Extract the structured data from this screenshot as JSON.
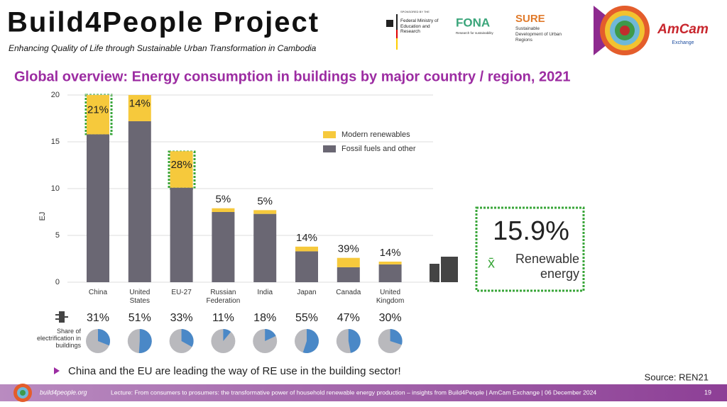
{
  "header": {
    "title": "Build4People Project",
    "subtitle": "Enhancing Quality of Life through Sustainable Urban Transformation in Cambodia"
  },
  "logos": {
    "sponsor_caption": "SPONSORED BY THE",
    "ministry": "Federal Ministry of Education and Research",
    "fona": "FONA",
    "fona_caption": "Research for sustainability",
    "sure": "SURE",
    "sure_caption": "Sustainable Development of Urban Regions",
    "amcam": "AmCam",
    "amcam_caption": "Exchange"
  },
  "slide_title": "Global overview: Energy consumption in buildings by major country / region, 2021",
  "chart_data": {
    "type": "stacked-bar",
    "y_label": "EJ",
    "categories": [
      "China",
      "United States",
      "EU-27",
      "Russian Federation",
      "India",
      "Japan",
      "Canada",
      "United Kingdom"
    ],
    "series": [
      {
        "name": "Modern renewables",
        "color": "#f6c93c",
        "values": [
          4.2,
          2.8,
          3.9,
          0.4,
          0.4,
          0.5,
          1.0,
          0.3
        ]
      },
      {
        "name": "Fossil fuels and other",
        "color": "#6a6773",
        "values": [
          15.8,
          17.2,
          10.1,
          7.5,
          7.3,
          3.3,
          1.6,
          1.9
        ]
      }
    ],
    "renewable_share_labels": [
      "21%",
      "14%",
      "28%",
      "5%",
      "5%",
      "14%",
      "39%",
      "14%"
    ],
    "ylim": [
      0,
      20
    ],
    "yticks": [
      0,
      5,
      10,
      15,
      20
    ],
    "grid": true,
    "electrification": {
      "type": "pie",
      "label": "Share of electrification in buildings",
      "color": "#4a88c7",
      "rest_color": "#b9b9bd",
      "values": [
        31,
        51,
        33,
        11,
        18,
        55,
        47,
        30
      ],
      "value_labels": [
        "31%",
        "51%",
        "33%",
        "11%",
        "18%",
        "55%",
        "47%",
        "30%"
      ]
    }
  },
  "callout": {
    "value": "15.9%",
    "symbol": "x̄",
    "label": "Renewable energy"
  },
  "bullet": "China and the EU are leading the way of RE use in the building sector!",
  "source": "Source: REN21",
  "footer": {
    "site": "build4people.org",
    "lecture": "Lecture: From consumers to prosumers: the transformative power of household renewable energy production – insights from Build4People | AmCam Exchange | 06 December 2024",
    "page": "19"
  }
}
